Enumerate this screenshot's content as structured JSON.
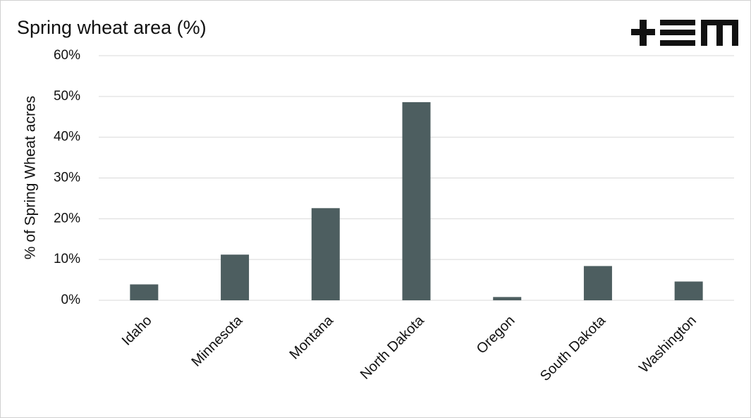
{
  "chart_data": {
    "type": "bar",
    "title": "Spring wheat area (%)",
    "y_label": "% of Spring Wheat acres",
    "categories": [
      "Idaho",
      "Minnesota",
      "Montana",
      "North Dakota",
      "Oregon",
      "South Dakota",
      "Washington"
    ],
    "values": [
      3.9,
      11.2,
      22.6,
      48.6,
      0.8,
      8.4,
      4.6
    ],
    "color": "#4d5e60",
    "ylim": [
      0,
      60
    ],
    "yticks": [
      {
        "value": 0,
        "label": "0%"
      },
      {
        "value": 10,
        "label": "10%"
      },
      {
        "value": 20,
        "label": "20%"
      },
      {
        "value": 30,
        "label": "30%"
      },
      {
        "value": 40,
        "label": "40%"
      },
      {
        "value": 50,
        "label": "50%"
      },
      {
        "value": 60,
        "label": "60%"
      }
    ],
    "grid": true
  }
}
